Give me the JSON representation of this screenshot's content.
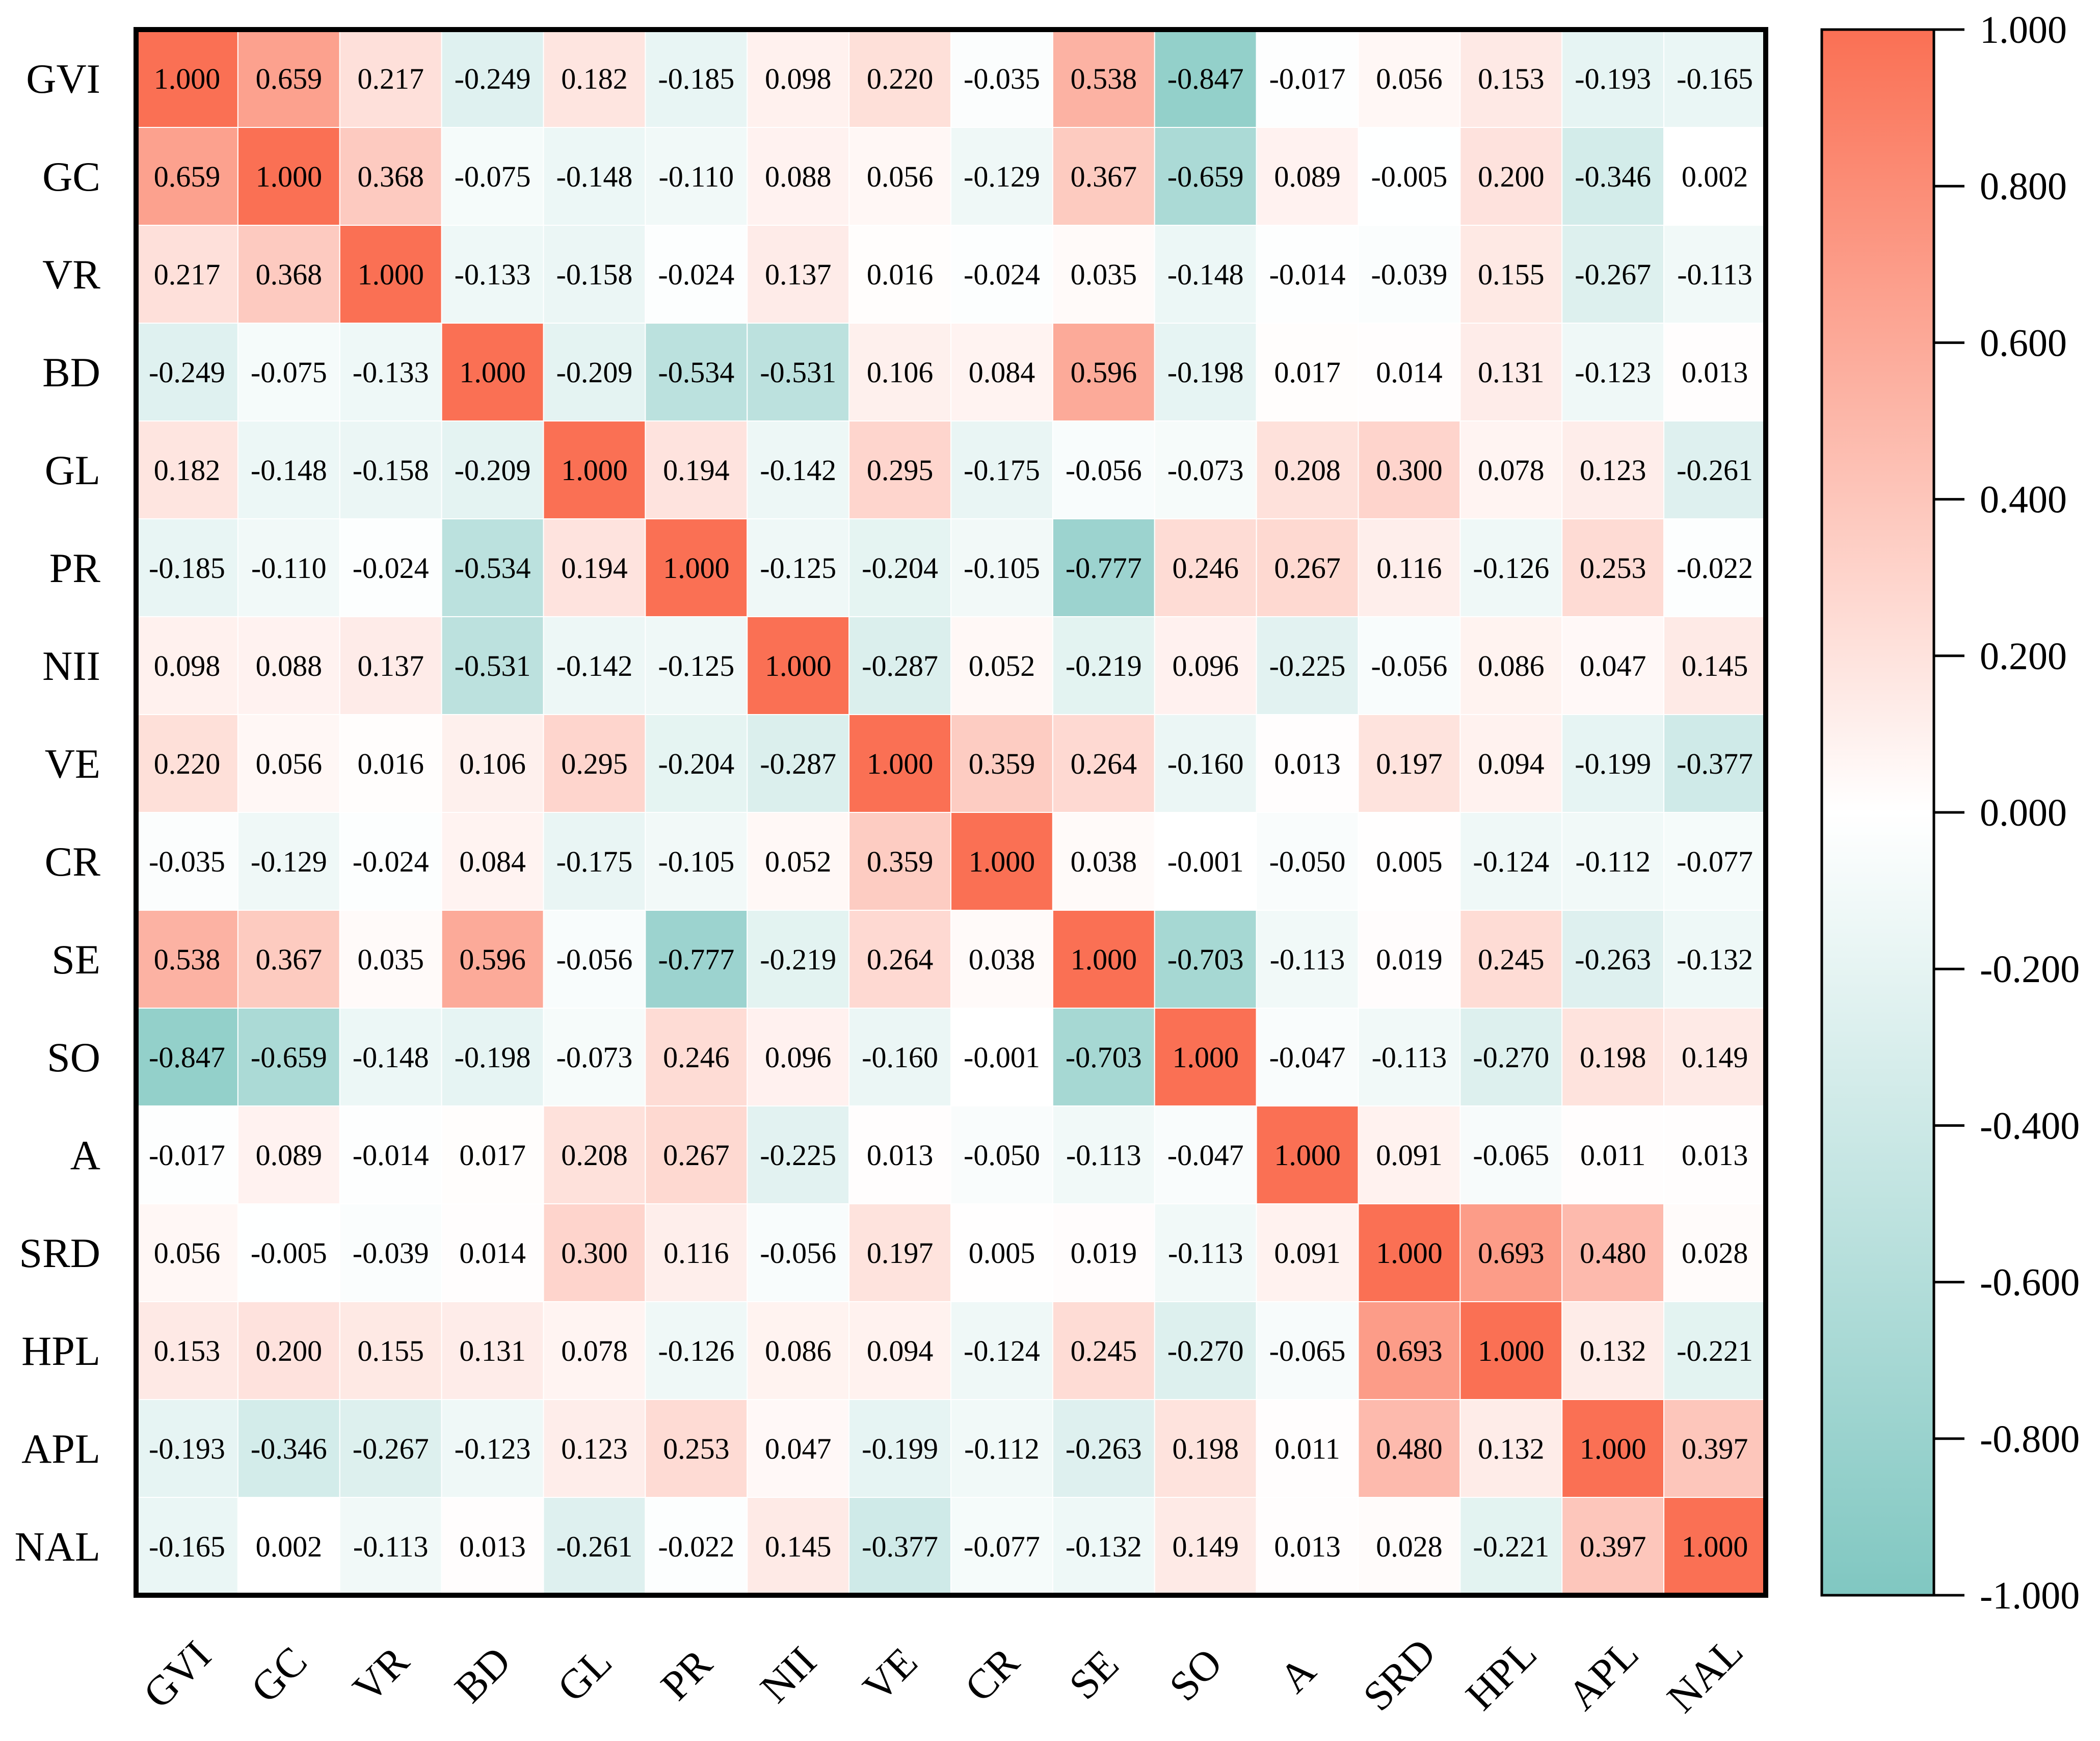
{
  "chart_data": {
    "type": "heatmap",
    "title": "",
    "xlabel": "",
    "ylabel": "",
    "variables": [
      "GVI",
      "GC",
      "VR",
      "BD",
      "GL",
      "PR",
      "NII",
      "VE",
      "CR",
      "SE",
      "SO",
      "A",
      "SRD",
      "HPL",
      "APL",
      "NAL"
    ],
    "matrix": [
      [
        "1.000",
        "0.659",
        "0.217",
        "-0.249",
        "0.182",
        "-0.185",
        "0.098",
        "0.220",
        "-0.035",
        "0.538",
        "-0.847",
        "-0.017",
        "0.056",
        "0.153",
        "-0.193",
        "-0.165"
      ],
      [
        "0.659",
        "1.000",
        "0.368",
        "-0.075",
        "-0.148",
        "-0.110",
        "0.088",
        "0.056",
        "-0.129",
        "0.367",
        "-0.659",
        "0.089",
        "-0.005",
        "0.200",
        "-0.346",
        "0.002"
      ],
      [
        "0.217",
        "0.368",
        "1.000",
        "-0.133",
        "-0.158",
        "-0.024",
        "0.137",
        "0.016",
        "-0.024",
        "0.035",
        "-0.148",
        "-0.014",
        "-0.039",
        "0.155",
        "-0.267",
        "-0.113"
      ],
      [
        "-0.249",
        "-0.075",
        "-0.133",
        "1.000",
        "-0.209",
        "-0.534",
        "-0.531",
        "0.106",
        "0.084",
        "0.596",
        "-0.198",
        "0.017",
        "0.014",
        "0.131",
        "-0.123",
        "0.013"
      ],
      [
        "0.182",
        "-0.148",
        "-0.158",
        "-0.209",
        "1.000",
        "0.194",
        "-0.142",
        "0.295",
        "-0.175",
        "-0.056",
        "-0.073",
        "0.208",
        "0.300",
        "0.078",
        "0.123",
        "-0.261"
      ],
      [
        "-0.185",
        "-0.110",
        "-0.024",
        "-0.534",
        "0.194",
        "1.000",
        "-0.125",
        "-0.204",
        "-0.105",
        "-0.777",
        "0.246",
        "0.267",
        "0.116",
        "-0.126",
        "0.253",
        "-0.022"
      ],
      [
        "0.098",
        "0.088",
        "0.137",
        "-0.531",
        "-0.142",
        "-0.125",
        "1.000",
        "-0.287",
        "0.052",
        "-0.219",
        "0.096",
        "-0.225",
        "-0.056",
        "0.086",
        "0.047",
        "0.145"
      ],
      [
        "0.220",
        "0.056",
        "0.016",
        "0.106",
        "0.295",
        "-0.204",
        "-0.287",
        "1.000",
        "0.359",
        "0.264",
        "-0.160",
        "0.013",
        "0.197",
        "0.094",
        "-0.199",
        "-0.377"
      ],
      [
        "-0.035",
        "-0.129",
        "-0.024",
        "0.084",
        "-0.175",
        "-0.105",
        "0.052",
        "0.359",
        "1.000",
        "0.038",
        "-0.001",
        "-0.050",
        "0.005",
        "-0.124",
        "-0.112",
        "-0.077"
      ],
      [
        "0.538",
        "0.367",
        "0.035",
        "0.596",
        "-0.056",
        "-0.777",
        "-0.219",
        "0.264",
        "0.038",
        "1.000",
        "-0.703",
        "-0.113",
        "0.019",
        "0.245",
        "-0.263",
        "-0.132"
      ],
      [
        "-0.847",
        "-0.659",
        "-0.148",
        "-0.198",
        "-0.073",
        "0.246",
        "0.096",
        "-0.160",
        "-0.001",
        "-0.703",
        "1.000",
        "-0.047",
        "-0.113",
        "-0.270",
        "0.198",
        "0.149"
      ],
      [
        "-0.017",
        "0.089",
        "-0.014",
        "0.017",
        "0.208",
        "0.267",
        "-0.225",
        "0.013",
        "-0.050",
        "-0.113",
        "-0.047",
        "1.000",
        "0.091",
        "-0.065",
        "0.011",
        "0.013"
      ],
      [
        "0.056",
        "-0.005",
        "-0.039",
        "0.014",
        "0.300",
        "0.116",
        "-0.056",
        "0.197",
        "0.005",
        "0.019",
        "-0.113",
        "0.091",
        "1.000",
        "0.693",
        "0.480",
        "0.028"
      ],
      [
        "0.153",
        "0.200",
        "0.155",
        "0.131",
        "0.078",
        "-0.126",
        "0.086",
        "0.094",
        "-0.124",
        "0.245",
        "-0.270",
        "-0.065",
        "0.693",
        "1.000",
        "0.132",
        "-0.221"
      ],
      [
        "-0.193",
        "-0.346",
        "-0.267",
        "-0.123",
        "0.123",
        "0.253",
        "0.047",
        "-0.199",
        "-0.112",
        "-0.263",
        "0.198",
        "0.011",
        "0.480",
        "0.132",
        "1.000",
        "0.397"
      ],
      [
        "-0.165",
        "0.002",
        "-0.113",
        "0.013",
        "-0.261",
        "-0.022",
        "0.145",
        "-0.377",
        "-0.077",
        "-0.132",
        "0.149",
        "0.013",
        "0.028",
        "-0.221",
        "0.397",
        "1.000"
      ]
    ],
    "value_range": [
      -1.0,
      1.0
    ],
    "colorbar": {
      "ticks": [
        "1.000",
        "0.800",
        "0.600",
        "0.400",
        "0.200",
        "0.000",
        "-0.200",
        "-0.400",
        "-0.600",
        "-0.800",
        "-1.000"
      ],
      "tick_values": [
        1.0,
        0.8,
        0.6,
        0.4,
        0.2,
        0.0,
        -0.2,
        -0.4,
        -0.6,
        -0.8,
        -1.0
      ],
      "position": "right"
    },
    "colors": {
      "positive": "#fa7054",
      "zero": "#ffffff",
      "negative": "#80c7c1",
      "grid": "#ffffff",
      "frame": "#000000"
    }
  }
}
